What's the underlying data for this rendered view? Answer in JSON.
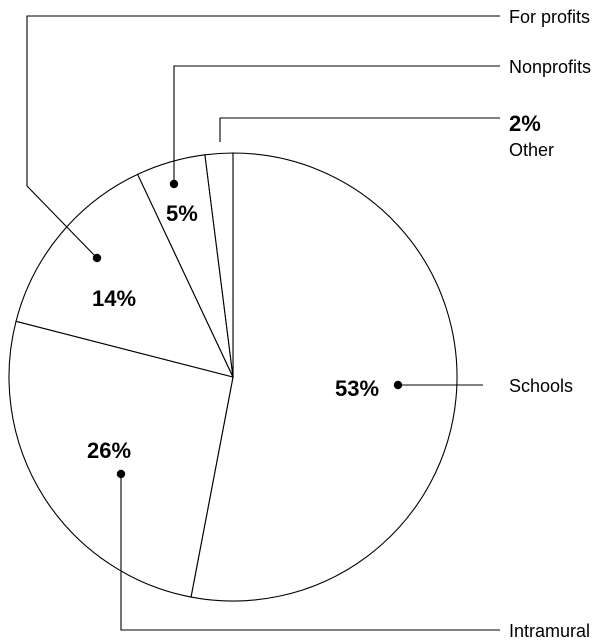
{
  "chart_data": {
    "type": "pie",
    "title": "",
    "slices": [
      {
        "label": "Schools",
        "value": 53,
        "value_label": "53%"
      },
      {
        "label": "Intramural",
        "value": 26,
        "value_label": "26%"
      },
      {
        "label": "For profits",
        "value": 14,
        "value_label": "14%"
      },
      {
        "label": "Nonprofits",
        "value": 5,
        "value_label": "5%"
      },
      {
        "label": "Other",
        "value": 2,
        "value_label": "2%"
      }
    ],
    "start_angle": "12 o'clock",
    "direction": "clockwise",
    "colors": {
      "fill": "#ffffff",
      "stroke": "#000000"
    }
  }
}
